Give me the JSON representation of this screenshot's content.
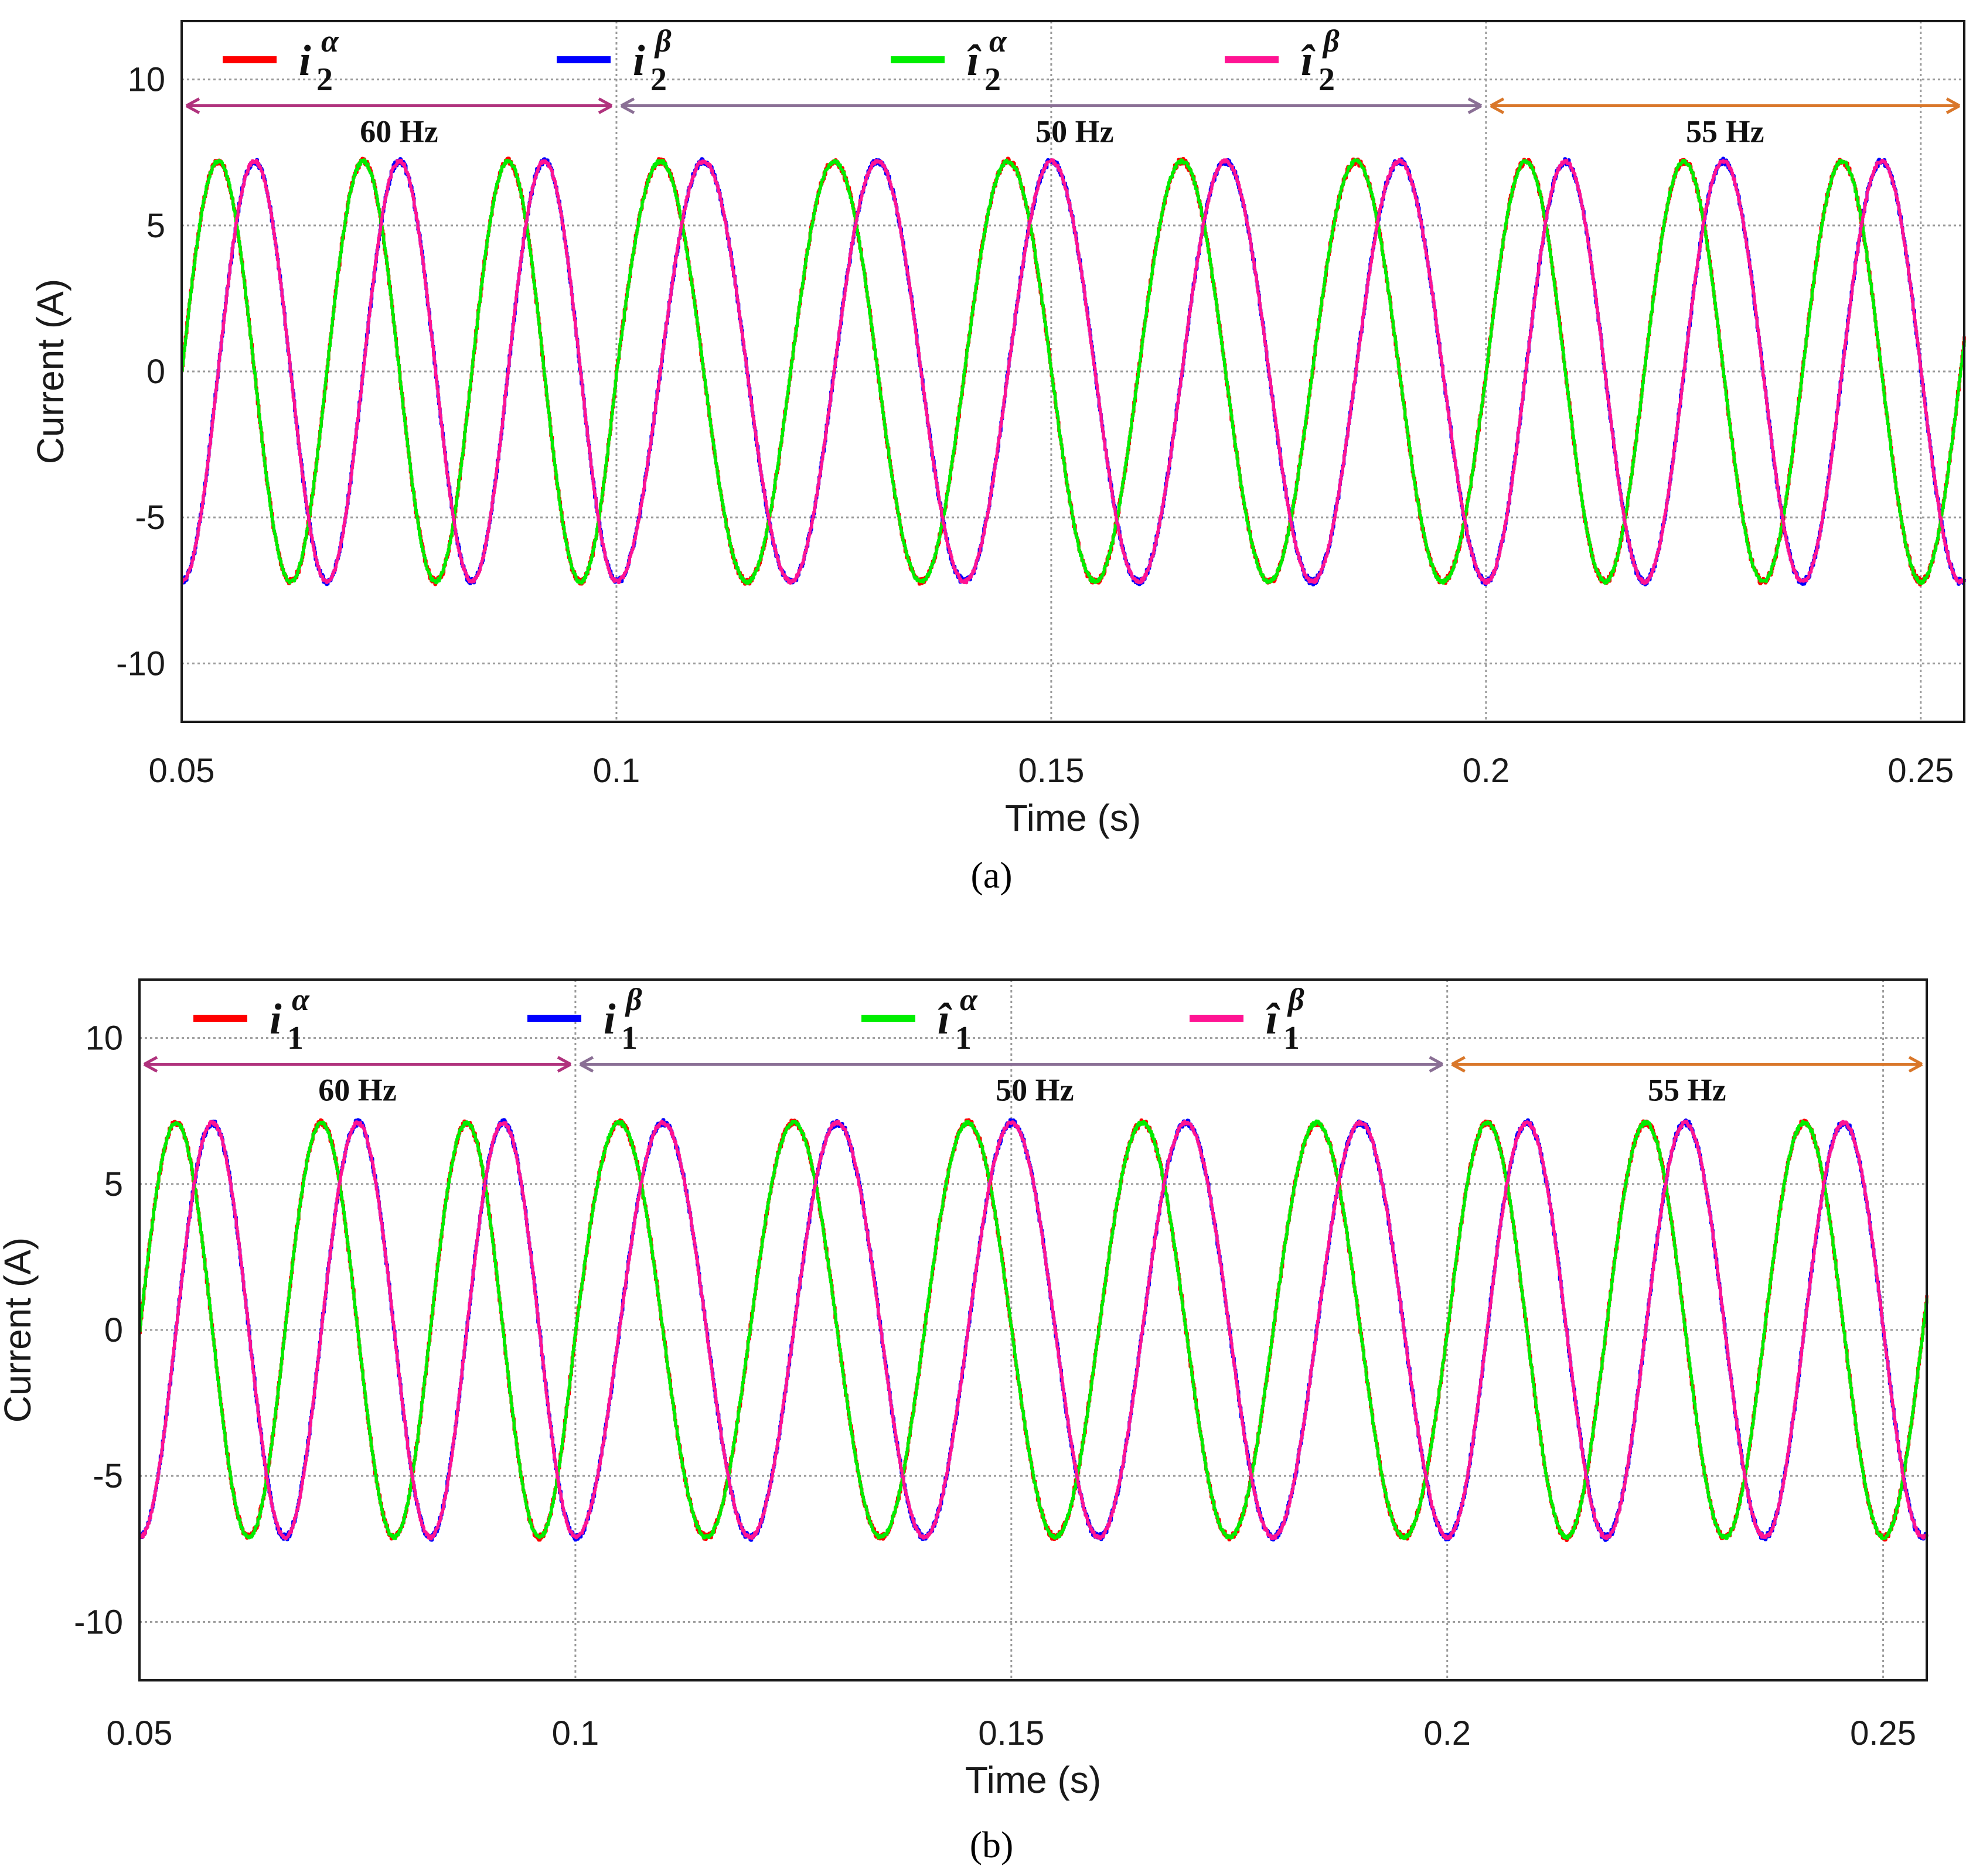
{
  "chart_data": [
    {
      "type": "line",
      "caption": "(a)",
      "xlabel": "Time (s)",
      "ylabel": "Current (A)",
      "xlim": [
        0.05,
        0.255
      ],
      "ylim": [
        -12,
        12
      ],
      "x_ticks": [
        0.05,
        0.1,
        0.15,
        0.2,
        0.25
      ],
      "x_tick_labels": [
        "0.05",
        "0.1",
        "0.15",
        "0.2",
        "0.25"
      ],
      "y_ticks": [
        10,
        5,
        0,
        -5,
        -10
      ],
      "y_tick_labels": [
        "10",
        "5",
        "0",
        "-5",
        "-10"
      ],
      "grid": true,
      "legend_position": "top",
      "amplitude": 7.2,
      "segments": [
        {
          "label": "60 Hz",
          "start": 0.05,
          "end": 0.1,
          "frequency": 60,
          "color": "#b0327d"
        },
        {
          "label": "50 Hz",
          "start": 0.1,
          "end": 0.2,
          "frequency": 50,
          "color": "#8a6f95"
        },
        {
          "label": "55 Hz",
          "start": 0.2,
          "end": 0.255,
          "frequency": 55,
          "color": "#d9772a"
        }
      ],
      "series": [
        {
          "name": "i",
          "sup": "α",
          "sub": "2",
          "hat": false,
          "color": "#ff0000",
          "phase": "alpha"
        },
        {
          "name": "i",
          "sup": "β",
          "sub": "2",
          "hat": false,
          "color": "#0000ff",
          "phase": "beta"
        },
        {
          "name": "î",
          "sup": "α",
          "sub": "2",
          "hat": true,
          "color": "#00ee00",
          "phase": "alpha"
        },
        {
          "name": "î",
          "sup": "β",
          "sub": "2",
          "hat": true,
          "color": "#ff1493",
          "phase": "beta"
        }
      ]
    },
    {
      "type": "line",
      "caption": "(b)",
      "xlabel": "Time (s)",
      "ylabel": "Current (A)",
      "xlim": [
        0.05,
        0.255
      ],
      "ylim": [
        -12,
        12
      ],
      "x_ticks": [
        0.05,
        0.1,
        0.15,
        0.2,
        0.25
      ],
      "x_tick_labels": [
        "0.05",
        "0.1",
        "0.15",
        "0.2",
        "0.25"
      ],
      "y_ticks": [
        10,
        5,
        0,
        -5,
        -10
      ],
      "y_tick_labels": [
        "10",
        "5",
        "0",
        "-5",
        "-10"
      ],
      "grid": true,
      "legend_position": "top",
      "amplitude": 7.1,
      "segments": [
        {
          "label": "60 Hz",
          "start": 0.05,
          "end": 0.1,
          "frequency": 60,
          "color": "#b0327d"
        },
        {
          "label": "50 Hz",
          "start": 0.1,
          "end": 0.2,
          "frequency": 50,
          "color": "#8a6f95"
        },
        {
          "label": "55 Hz",
          "start": 0.2,
          "end": 0.255,
          "frequency": 55,
          "color": "#d9772a"
        }
      ],
      "series": [
        {
          "name": "i",
          "sup": "α",
          "sub": "1",
          "hat": false,
          "color": "#ff0000",
          "phase": "alpha"
        },
        {
          "name": "i",
          "sup": "β",
          "sub": "1",
          "hat": false,
          "color": "#0000ff",
          "phase": "beta"
        },
        {
          "name": "î",
          "sup": "α",
          "sub": "1",
          "hat": true,
          "color": "#00ee00",
          "phase": "alpha"
        },
        {
          "name": "î",
          "sup": "β",
          "sub": "1",
          "hat": true,
          "color": "#ff1493",
          "phase": "beta"
        }
      ]
    }
  ]
}
